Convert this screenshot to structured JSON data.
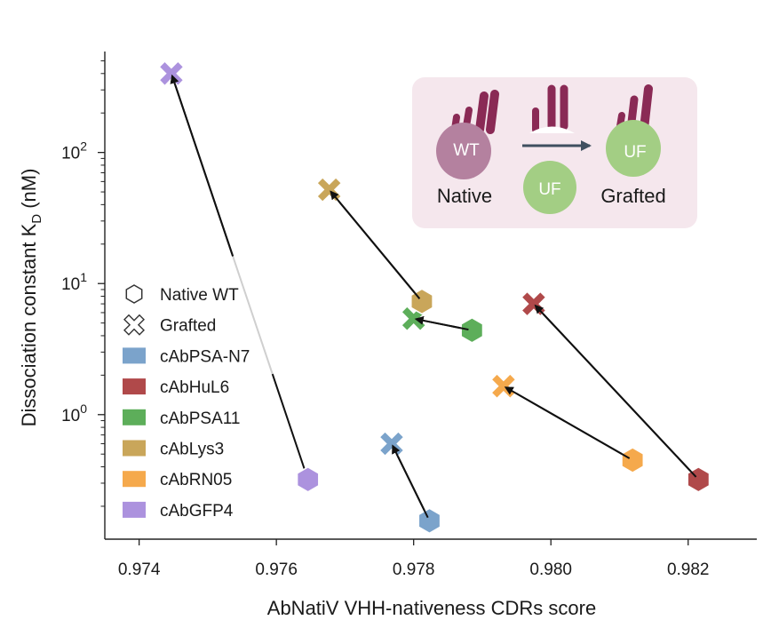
{
  "chart_data": {
    "type": "scatter",
    "title": "",
    "xlabel": "AbNatiV VHH-nativeness CDRs score",
    "ylabel_main": "Dissociation constant K",
    "ylabel_sub": "D",
    "ylabel_unit": " (nM)",
    "xlim": [
      0.9735,
      0.983
    ],
    "ylim_log10": [
      -0.95,
      2.77
    ],
    "x_ticks": [
      {
        "value": 0.974,
        "label": "0.974"
      },
      {
        "value": 0.976,
        "label": "0.976"
      },
      {
        "value": 0.978,
        "label": "0.978"
      },
      {
        "value": 0.98,
        "label": "0.980"
      },
      {
        "value": 0.982,
        "label": "0.982"
      }
    ],
    "y_ticks_major": [
      {
        "exp": 0,
        "base": "10",
        "power": "0"
      },
      {
        "exp": 1,
        "base": "10",
        "power": "1"
      },
      {
        "exp": 2,
        "base": "10",
        "power": "2"
      }
    ],
    "series": [
      {
        "name": "cAbPSA-N7",
        "color": "#7BA3CB",
        "native": {
          "x": 0.97823,
          "y": 0.155
        },
        "grafted": {
          "x": 0.97768,
          "y": 0.6
        },
        "link": "arrow"
      },
      {
        "name": "cAbHuL6",
        "color": "#B0494A",
        "native": {
          "x": 0.98215,
          "y": 0.32
        },
        "grafted": {
          "x": 0.97975,
          "y": 7.0
        },
        "link": "arrow"
      },
      {
        "name": "cAbPSA11",
        "color": "#5DAE5A",
        "native": {
          "x": 0.97885,
          "y": 4.4
        },
        "grafted": {
          "x": 0.978,
          "y": 5.4
        },
        "link": "arrow"
      },
      {
        "name": "cAbLys3",
        "color": "#C9A65A",
        "native": {
          "x": 0.97812,
          "y": 7.3
        },
        "grafted": {
          "x": 0.97677,
          "y": 52
        },
        "link": "arrow"
      },
      {
        "name": "cAbRN05",
        "color": "#F5A94C",
        "native": {
          "x": 0.98119,
          "y": 0.45
        },
        "grafted": {
          "x": 0.97931,
          "y": 1.65
        },
        "link": "arrow"
      },
      {
        "name": "cAbGFP4",
        "color": "#AC92DE",
        "native": {
          "x": 0.97646,
          "y": 0.32
        },
        "grafted": {
          "x": 0.97447,
          "y": 400
        },
        "link": "faded-arrow"
      }
    ],
    "legend": {
      "placement": "left",
      "marker_entries": [
        {
          "label": "Native WT",
          "marker": "hexagon"
        },
        {
          "label": "Grafted",
          "marker": "cross"
        }
      ]
    },
    "inset": {
      "native_label": "Native",
      "grafted_label": "Grafted",
      "wt_label": "WT",
      "uf_label": "UF",
      "background": "#F5E7ED",
      "loop_color": "#8A2A55",
      "wt_color": "#B4819F",
      "uf_color": "#A3CE84",
      "arrow_color": "#3F4F5F"
    }
  }
}
